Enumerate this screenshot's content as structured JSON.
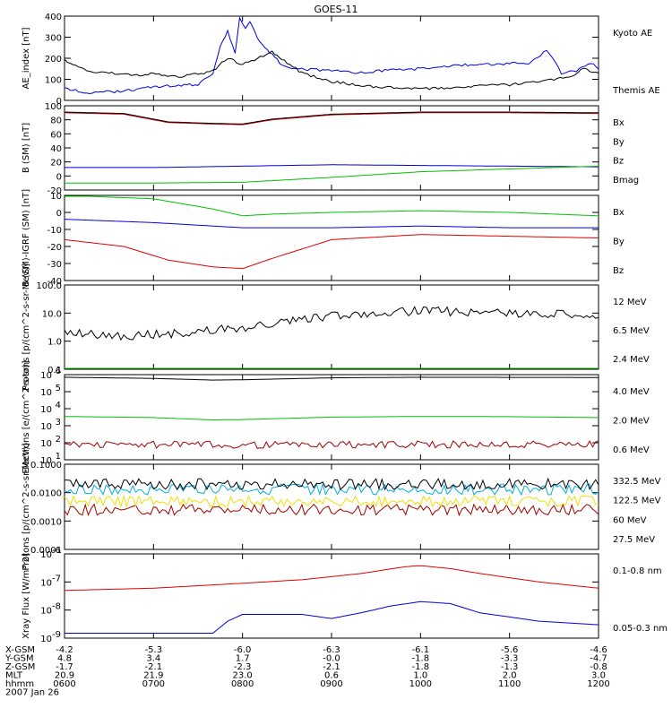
{
  "title": "GOES-11",
  "time_axis": {
    "range_minutes": [
      360,
      720
    ],
    "tick_minutes": [
      360,
      420,
      480,
      540,
      600,
      660,
      720
    ],
    "row_labels": [
      "X-GSM",
      "Y-GSM",
      "Z-GSM",
      "MLT",
      "hhmm",
      "2007 Jan 26"
    ],
    "columns": [
      [
        "-4.2",
        "4.8",
        "-1.7",
        "20.9",
        "0600"
      ],
      [
        "-5.3",
        "3.4",
        "-2.1",
        "21.9",
        "0700"
      ],
      [
        "-6.0",
        "1.7",
        "-2.3",
        "23.0",
        "0800"
      ],
      [
        "-6.3",
        "-0.0",
        "-2.1",
        "0.6",
        "0900"
      ],
      [
        "-6.1",
        "-1.8",
        "-1.8",
        "1.0",
        "1000"
      ],
      [
        "-5.6",
        "-3.3",
        "-1.3",
        "2.0",
        "1100"
      ],
      [
        "-4.6",
        "-4.7",
        "-0.8",
        "3.0",
        "1200"
      ]
    ]
  },
  "chart_data": [
    {
      "type": "line",
      "ylabel": "AE_index [nT]",
      "yscale": "linear",
      "ylim": [
        0,
        400
      ],
      "yticks": [
        "0",
        "100",
        "200",
        "300",
        "400"
      ],
      "series": [
        {
          "name": "Kyoto AE",
          "color": "#0000e0",
          "x": [
            360,
            375,
            390,
            405,
            420,
            435,
            450,
            460,
            465,
            470,
            475,
            478,
            482,
            485,
            490,
            495,
            500,
            505,
            510,
            520,
            540,
            560,
            580,
            600,
            620,
            640,
            660,
            675,
            685,
            695,
            705,
            715,
            720
          ],
          "y": [
            60,
            35,
            40,
            50,
            65,
            70,
            75,
            130,
            260,
            330,
            220,
            390,
            340,
            380,
            300,
            250,
            220,
            180,
            160,
            150,
            140,
            130,
            145,
            150,
            165,
            170,
            175,
            180,
            240,
            130,
            140,
            180,
            150
          ]
        },
        {
          "name": "Themis AE",
          "color": "#000000",
          "x": [
            360,
            375,
            390,
            405,
            420,
            435,
            450,
            460,
            470,
            480,
            490,
            500,
            505,
            510,
            520,
            530,
            540,
            560,
            580,
            600,
            620,
            640,
            660,
            680,
            700,
            710,
            720
          ],
          "y": [
            190,
            140,
            130,
            120,
            125,
            110,
            125,
            140,
            200,
            170,
            200,
            230,
            200,
            180,
            130,
            110,
            90,
            70,
            60,
            55,
            60,
            70,
            75,
            90,
            110,
            150,
            130
          ]
        }
      ]
    },
    {
      "type": "line",
      "ylabel": "B (SM) [nT]",
      "yscale": "linear",
      "ylim": [
        -20,
        100
      ],
      "yticks": [
        "-20",
        "0",
        "20",
        "40",
        "60",
        "80",
        "100"
      ],
      "series": [
        {
          "name": "Bx",
          "color": "#0000e0",
          "x": [
            360,
            420,
            480,
            540,
            600,
            660,
            720
          ],
          "y": [
            12,
            12,
            14,
            16,
            15,
            14,
            13
          ]
        },
        {
          "name": "By",
          "color": "#00c000",
          "x": [
            360,
            420,
            480,
            540,
            600,
            660,
            720
          ],
          "y": [
            -10,
            -10,
            -9,
            -2,
            6,
            10,
            14
          ]
        },
        {
          "name": "Bz",
          "color": "#e00000",
          "x": [
            360,
            400,
            430,
            460,
            480,
            500,
            540,
            600,
            660,
            720
          ],
          "y": [
            90,
            88,
            76,
            74,
            73,
            80,
            87,
            90,
            90,
            89
          ]
        },
        {
          "name": "Bmag",
          "color": "#000000",
          "x": [
            360,
            400,
            430,
            460,
            480,
            500,
            540,
            600,
            660,
            720
          ],
          "y": [
            91,
            89,
            77,
            75,
            74,
            81,
            88,
            91,
            91,
            90
          ]
        }
      ]
    },
    {
      "type": "line",
      "ylabel": "B (SM)-IGRF (SM) [nT]",
      "yscale": "linear",
      "ylim": [
        -40,
        10
      ],
      "yticks": [
        "-40",
        "-30",
        "-20",
        "-10",
        "0",
        "10"
      ],
      "series": [
        {
          "name": "Bx",
          "color": "#0000e0",
          "x": [
            360,
            420,
            480,
            540,
            600,
            660,
            720
          ],
          "y": [
            -4,
            -6,
            -9,
            -9,
            -8,
            -9,
            -9
          ]
        },
        {
          "name": "By",
          "color": "#00c000",
          "x": [
            360,
            420,
            460,
            480,
            500,
            540,
            600,
            660,
            720
          ],
          "y": [
            10,
            8,
            2,
            -2,
            -1,
            0,
            1,
            0,
            -2
          ]
        },
        {
          "name": "Bz",
          "color": "#e00000",
          "x": [
            360,
            400,
            430,
            460,
            480,
            500,
            540,
            600,
            660,
            720
          ],
          "y": [
            -16,
            -20,
            -28,
            -32,
            -33,
            -27,
            -16,
            -13,
            -14,
            -15
          ]
        }
      ]
    },
    {
      "type": "line",
      "ylabel": "Protons [p/(cm^2-s-sr-MeV)]",
      "yscale": "log",
      "ylim": [
        0.1,
        100
      ],
      "yticks": [
        "0.1",
        "1.0",
        "10.0",
        "100.0"
      ],
      "series": [
        {
          "name": "12 MeV",
          "color": "#a00000",
          "x": [
            360,
            720
          ],
          "y": [
            0.1,
            0.1
          ]
        },
        {
          "name": "6.5 MeV",
          "color": "#00c000",
          "x": [
            360,
            720
          ],
          "y": [
            0.1,
            0.1
          ]
        },
        {
          "name": "2.4 MeV",
          "color": "#000000",
          "x": [
            360,
            400,
            440,
            480,
            520,
            560,
            600,
            640,
            680,
            720
          ],
          "y": [
            2,
            1.5,
            2,
            3,
            6,
            10,
            12,
            11,
            9,
            9
          ]
        }
      ]
    },
    {
      "type": "line",
      "ylabel": "Electrons [e/(cm^2-s-sr)]",
      "yscale": "log",
      "ylim": [
        10,
        1000000
      ],
      "yticks": [
        "10^1",
        "10^2",
        "10^3",
        "10^4",
        "10^5",
        "10^6"
      ],
      "series": [
        {
          "name": "4.0 MeV",
          "color": "#a00000",
          "x": [
            360,
            480,
            600,
            720
          ],
          "y": [
            80,
            75,
            80,
            80
          ]
        },
        {
          "name": "2.0 MeV",
          "color": "#00c000",
          "x": [
            360,
            420,
            460,
            480,
            540,
            600,
            660,
            720
          ],
          "y": [
            3500,
            3000,
            2200,
            2300,
            3200,
            3500,
            3400,
            3000
          ]
        },
        {
          "name": "0.6 MeV",
          "color": "#000000",
          "x": [
            360,
            420,
            460,
            480,
            540,
            600,
            720
          ],
          "y": [
            700000,
            600000,
            480000,
            500000,
            650000,
            700000,
            680000
          ]
        }
      ]
    },
    {
      "type": "line",
      "ylabel": "Protons [p/(cm^2-s-sr-MeV)]",
      "yscale": "log",
      "ylim": [
        0.0001,
        0.1
      ],
      "yticks": [
        "0.0001",
        "0.0010",
        "0.0100",
        "0.1000"
      ],
      "series": [
        {
          "name": "332.5 MeV",
          "color": "#a00000",
          "x": [
            360,
            480,
            600,
            720
          ],
          "y": [
            0.0025,
            0.0025,
            0.0025,
            0.0025
          ]
        },
        {
          "name": "122.5 MeV",
          "color": "#f0e000",
          "x": [
            360,
            480,
            600,
            720
          ],
          "y": [
            0.005,
            0.005,
            0.005,
            0.005
          ]
        },
        {
          "name": "60 MeV",
          "color": "#00b0e0",
          "x": [
            360,
            480,
            600,
            720
          ],
          "y": [
            0.013,
            0.013,
            0.013,
            0.013
          ]
        },
        {
          "name": "27.5 MeV",
          "color": "#000000",
          "x": [
            360,
            480,
            600,
            720
          ],
          "y": [
            0.02,
            0.02,
            0.02,
            0.02
          ]
        }
      ]
    },
    {
      "type": "line",
      "ylabel": "Xray Flux [W/m^2]",
      "yscale": "log",
      "ylim": [
        1e-09,
        1e-06
      ],
      "yticks": [
        "10^-9",
        "10^-8",
        "10^-7",
        "10^-6"
      ],
      "series": [
        {
          "name": "0.1-0.8 nm",
          "color": "#e00000",
          "x": [
            360,
            420,
            480,
            520,
            560,
            590,
            600,
            620,
            640,
            680,
            720
          ],
          "y": [
            5e-08,
            6e-08,
            9e-08,
            1.2e-07,
            2e-07,
            3.5e-07,
            3.8e-07,
            3e-07,
            2e-07,
            1e-07,
            6e-08
          ]
        },
        {
          "name": "0.05-0.3 nm",
          "color": "#0000e0",
          "x": [
            360,
            440,
            460,
            470,
            480,
            520,
            540,
            560,
            580,
            600,
            620,
            640,
            680,
            720
          ],
          "y": [
            1.5e-09,
            1.5e-09,
            1.5e-09,
            4e-09,
            7e-09,
            7e-09,
            5e-09,
            8e-09,
            1.4e-08,
            2e-08,
            1.7e-08,
            8e-09,
            4e-09,
            3e-09
          ]
        }
      ]
    }
  ]
}
